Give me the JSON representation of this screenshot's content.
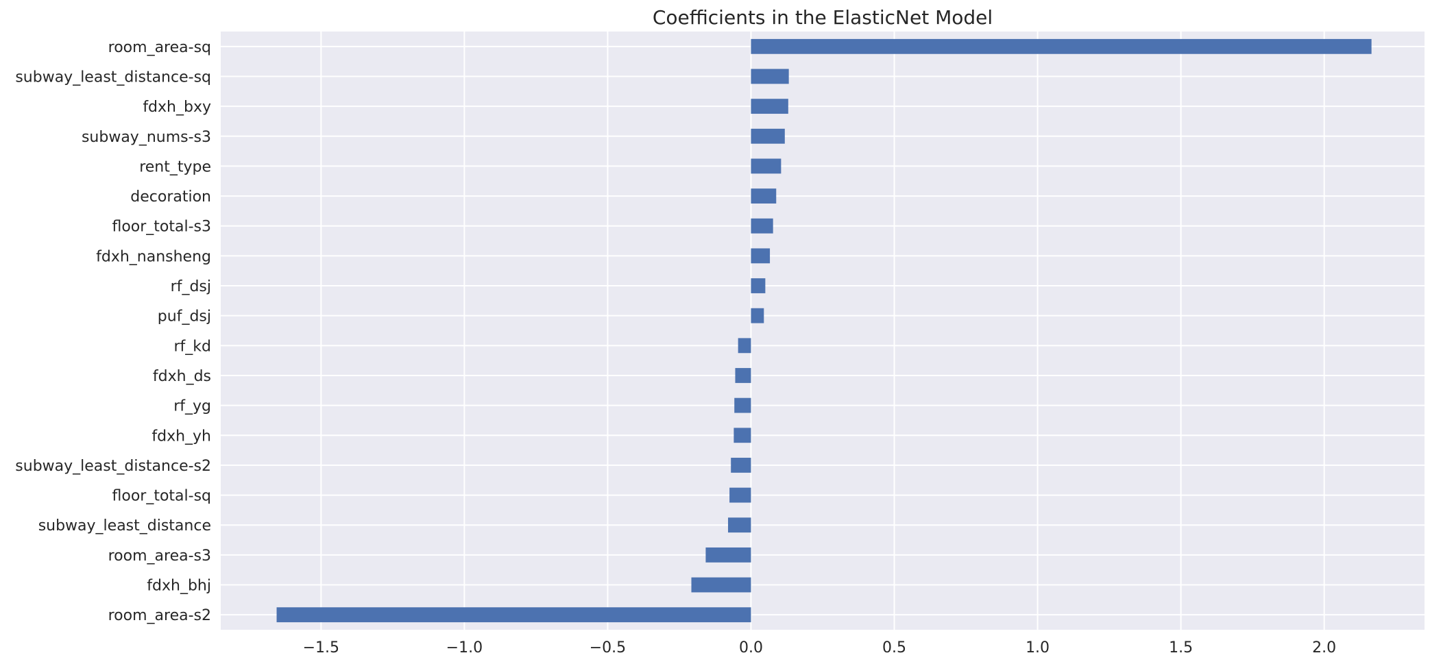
{
  "chart_data": {
    "type": "bar",
    "orientation": "horizontal",
    "title": "Coefficients in the ElasticNet Model",
    "xlabel": "",
    "ylabel": "",
    "xlim": [
      -1.85,
      2.35
    ],
    "xticks": [
      -1.5,
      -1.0,
      -0.5,
      0.0,
      0.5,
      1.0,
      1.5,
      2.0
    ],
    "xtick_labels": [
      "−1.5",
      "−1.0",
      "−0.5",
      "0.0",
      "0.5",
      "1.0",
      "1.5",
      "2.0"
    ],
    "grid": true,
    "categories": [
      "room_area-sq",
      "subway_least_distance-sq",
      "fdxh_bxy",
      "subway_nums-s3",
      "rent_type",
      "decoration",
      "floor_total-s3",
      "fdxh_nansheng",
      "rf_dsj",
      "puf_dsj",
      "rf_kd",
      "fdxh_ds",
      "rf_yg",
      "fdxh_yh",
      "subway_least_distance-s2",
      "floor_total-sq",
      "subway_least_distance",
      "room_area-s3",
      "fdxh_bhj",
      "room_area-s2"
    ],
    "values": [
      2.165,
      0.132,
      0.13,
      0.118,
      0.105,
      0.088,
      0.077,
      0.066,
      0.05,
      0.045,
      -0.045,
      -0.055,
      -0.058,
      -0.06,
      -0.07,
      -0.075,
      -0.08,
      -0.158,
      -0.208,
      -1.655
    ],
    "colors": {
      "bar": "#4c72b0",
      "background": "#eaeaf2",
      "grid": "#ffffff"
    }
  }
}
